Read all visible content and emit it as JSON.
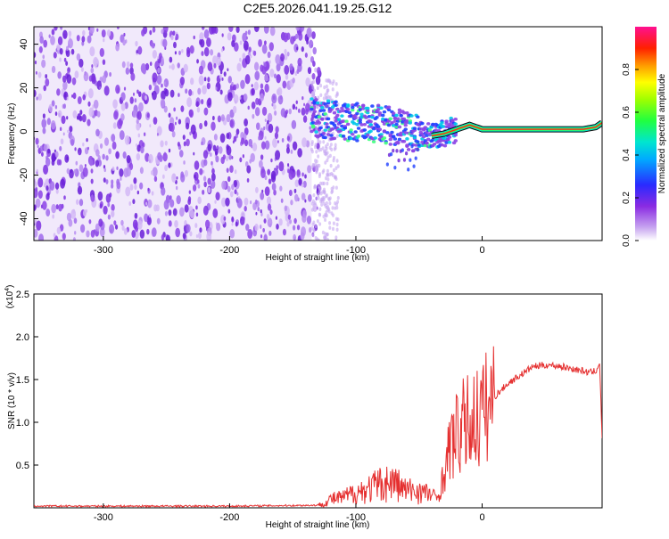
{
  "chart_data": [
    {
      "type": "heatmap",
      "title": "C2E5.2026.041.19.25.G12",
      "xlabel": "Height of straight line (km)",
      "ylabel": "Frequency (Hz)",
      "xlim": [
        -355,
        95
      ],
      "ylim": [
        -50,
        48
      ],
      "x_ticks": [
        "-300",
        "-200",
        "-100",
        "0"
      ],
      "y_ticks": [
        "40",
        "20",
        "0",
        "-20",
        "-40"
      ],
      "colorbar": {
        "label": "Normalized spectral amplitude",
        "range": [
          0,
          1
        ],
        "ticks": [
          "0.0",
          "0.2",
          "0.4",
          "0.6",
          "0.8"
        ]
      },
      "noise_region_x": [
        -355,
        -135
      ],
      "signal_track": {
        "x": [
          -135,
          -120,
          -100,
          -80,
          -60,
          -50,
          -40,
          -30,
          -20,
          -10,
          0,
          10,
          20,
          40,
          60,
          80,
          90,
          95
        ],
        "freq": [
          7,
          5,
          4,
          3,
          1,
          -1,
          -2,
          -1,
          1,
          3,
          1,
          1,
          1,
          1,
          1,
          1,
          2,
          4
        ]
      }
    },
    {
      "type": "line",
      "xlabel": "Height of straight line (km)",
      "ylabel": "SNR (10 * v/v)",
      "scale_label": "(x10",
      "scale_exp": "4",
      "scale_close": ")",
      "xlim": [
        -355,
        95
      ],
      "ylim": [
        0,
        2.5
      ],
      "x_ticks": [
        "-300",
        "-200",
        "-100",
        "0"
      ],
      "y_ticks": [
        "0.5",
        "1.0",
        "1.5",
        "2.0",
        "2.5"
      ],
      "series": [
        {
          "name": "SNR",
          "color": "#e53030",
          "x": [
            -355,
            -200,
            -130,
            -125,
            -120,
            -110,
            -100,
            -90,
            -80,
            -70,
            -60,
            -50,
            -40,
            -35,
            -30,
            -25,
            -20,
            -15,
            -10,
            0,
            10,
            20,
            30,
            40,
            50,
            60,
            70,
            80,
            85,
            90,
            93,
            95
          ],
          "y": [
            0.02,
            0.02,
            0.03,
            0.05,
            0.1,
            0.12,
            0.18,
            0.22,
            0.28,
            0.3,
            0.2,
            0.2,
            0.15,
            0.12,
            0.4,
            0.75,
            0.85,
            0.95,
            1.0,
            1.1,
            1.3,
            1.45,
            1.55,
            1.65,
            1.67,
            1.66,
            1.63,
            1.6,
            1.58,
            1.6,
            1.7,
            0.8
          ]
        }
      ]
    }
  ],
  "colors": {
    "noise_purple": "#7b2fe0",
    "noise_light": "#d8c4f4",
    "signal_blue": "#2040ff",
    "signal_cyan": "#00e0d0",
    "signal_green": "#40ff40",
    "signal_red": "#ff2020",
    "snr_line": "#e53030"
  }
}
